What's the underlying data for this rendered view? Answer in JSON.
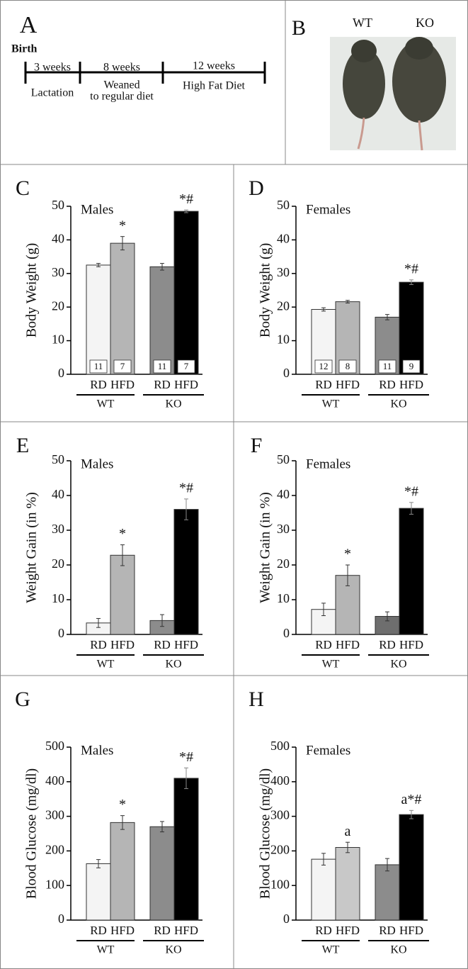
{
  "panel_a": {
    "label": "A",
    "start": "Birth",
    "stages": [
      {
        "duration": "3 weeks",
        "label_lines": [
          "Lactation"
        ]
      },
      {
        "duration": "8 weeks",
        "label_lines": [
          "Weaned",
          "to regular diet"
        ]
      },
      {
        "duration": "12 weeks",
        "label_lines": [
          "High Fat Diet"
        ]
      }
    ]
  },
  "panel_b": {
    "label": "B",
    "mice": [
      "WT",
      "KO"
    ]
  },
  "chart_data": [
    {
      "type": "bar",
      "panel": "C",
      "title": "Males",
      "y_label": "Body Weight (g)",
      "categories": [
        "RD",
        "HFD",
        "RD",
        "HFD"
      ],
      "groups": [
        "WT",
        "KO"
      ],
      "values": [
        32.5,
        39,
        32,
        48.5
      ],
      "errors": [
        0.5,
        2,
        1,
        0.4
      ],
      "n": [
        11,
        7,
        11,
        7
      ],
      "annotations": [
        null,
        "*",
        null,
        "*#"
      ],
      "colors": [
        "#f4f4f4",
        "#b5b5b5",
        "#8c8c8c",
        "#000000"
      ],
      "ylim": [
        0,
        50
      ],
      "yticks": [
        0,
        10,
        20,
        30,
        40,
        50
      ]
    },
    {
      "type": "bar",
      "panel": "D",
      "title": "Females",
      "y_label": "Body Weight (g)",
      "categories": [
        "RD",
        "HFD",
        "RD",
        "HFD"
      ],
      "groups": [
        "WT",
        "KO"
      ],
      "values": [
        19.3,
        21.6,
        17,
        27.4
      ],
      "errors": [
        0.5,
        0.4,
        0.8,
        0.7
      ],
      "n": [
        12,
        8,
        11,
        9
      ],
      "annotations": [
        null,
        null,
        null,
        "*#"
      ],
      "colors": [
        "#f4f4f4",
        "#b5b5b5",
        "#8c8c8c",
        "#000000"
      ],
      "ylim": [
        0,
        50
      ],
      "yticks": [
        0,
        10,
        20,
        30,
        40,
        50
      ]
    },
    {
      "type": "bar",
      "panel": "E",
      "title": "Males",
      "y_label": "Weight Gain (in %)",
      "categories": [
        "RD",
        "HFD",
        "RD",
        "HFD"
      ],
      "groups": [
        "WT",
        "KO"
      ],
      "values": [
        3.3,
        22.8,
        4,
        36
      ],
      "errors": [
        1.3,
        3,
        1.7,
        3
      ],
      "annotations": [
        null,
        "*",
        null,
        "*#"
      ],
      "colors": [
        "#f4f4f4",
        "#b5b5b5",
        "#8c8c8c",
        "#000000"
      ],
      "ylim": [
        0,
        50
      ],
      "yticks": [
        0,
        10,
        20,
        30,
        40,
        50
      ]
    },
    {
      "type": "bar",
      "panel": "F",
      "title": "Females",
      "y_label": "Weight Gain (in %)",
      "categories": [
        "RD",
        "HFD",
        "RD",
        "HFD"
      ],
      "groups": [
        "WT",
        "KO"
      ],
      "values": [
        7.2,
        17,
        5.2,
        36.3
      ],
      "errors": [
        1.8,
        3,
        1.3,
        1.7
      ],
      "annotations": [
        null,
        "*",
        null,
        "*#"
      ],
      "colors": [
        "#f4f4f4",
        "#b5b5b5",
        "#6e6e6e",
        "#000000"
      ],
      "ylim": [
        0,
        50
      ],
      "yticks": [
        0,
        10,
        20,
        30,
        40,
        50
      ]
    },
    {
      "type": "bar",
      "panel": "G",
      "title": "Males",
      "y_label": "Blood Glucose (mg/dl)",
      "categories": [
        "RD",
        "HFD",
        "RD",
        "HFD"
      ],
      "groups": [
        "WT",
        "KO"
      ],
      "values": [
        163,
        282,
        270,
        410
      ],
      "errors": [
        12,
        20,
        15,
        30
      ],
      "annotations": [
        null,
        "*",
        null,
        "*#"
      ],
      "colors": [
        "#f4f4f4",
        "#b5b5b5",
        "#8c8c8c",
        "#000000"
      ],
      "ylim": [
        0,
        500
      ],
      "yticks": [
        0,
        100,
        200,
        300,
        400,
        500
      ]
    },
    {
      "type": "bar",
      "panel": "H",
      "title": "Females",
      "y_label": "Blood Glucose (mg/dl)",
      "categories": [
        "RD",
        "HFD",
        "RD",
        "HFD"
      ],
      "groups": [
        "WT",
        "KO"
      ],
      "values": [
        176,
        210,
        160,
        305
      ],
      "errors": [
        17,
        15,
        18,
        12
      ],
      "annotations": [
        null,
        "a",
        null,
        "a*#"
      ],
      "colors": [
        "#f4f4f4",
        "#c8c8c8",
        "#8c8c8c",
        "#000000"
      ],
      "ylim": [
        0,
        500
      ],
      "yticks": [
        0,
        100,
        200,
        300,
        400,
        500
      ]
    }
  ]
}
